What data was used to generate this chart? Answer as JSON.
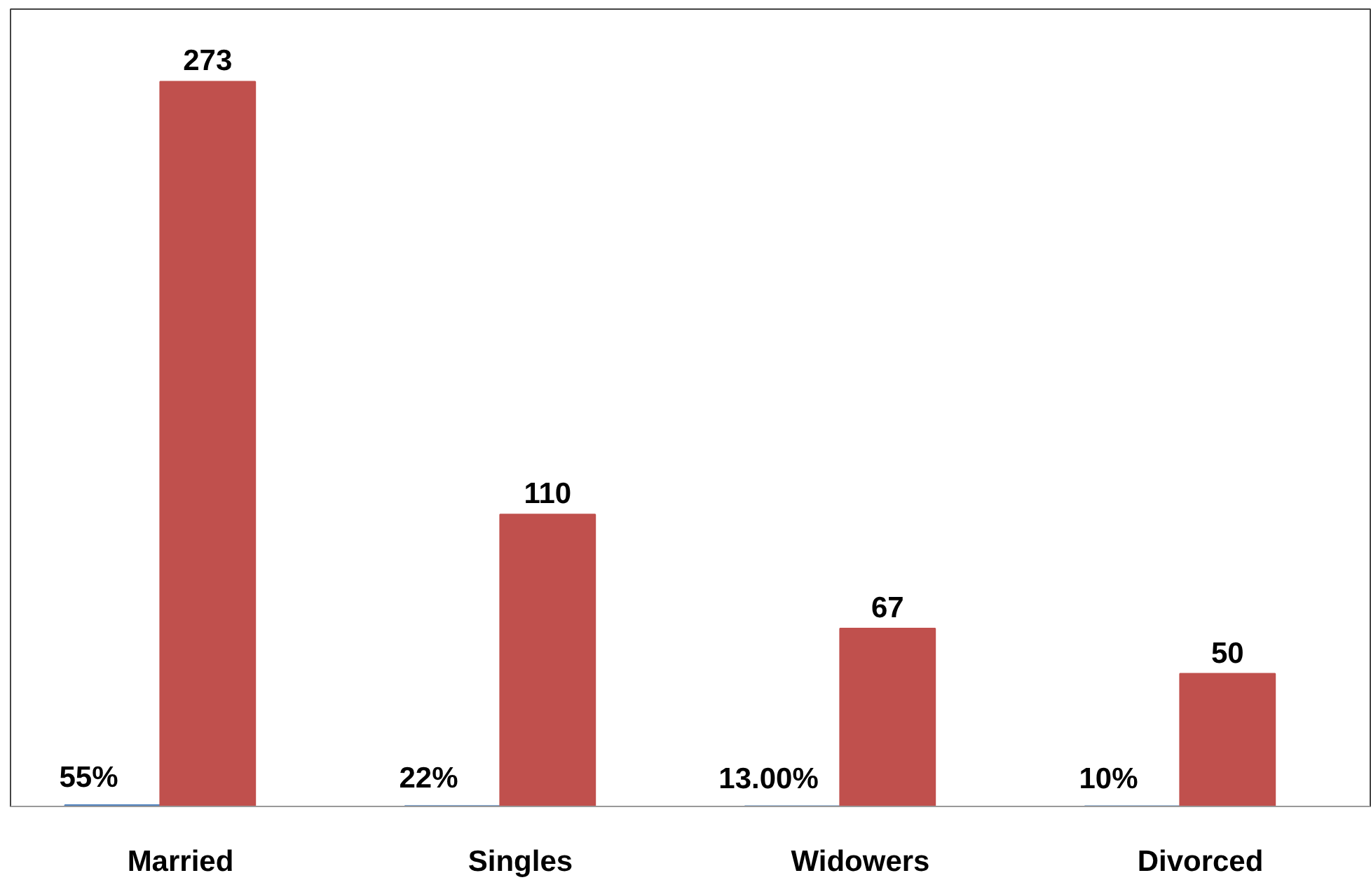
{
  "chart_data": {
    "type": "bar",
    "categories": [
      "Married",
      "Singles",
      "Widowers",
      "Divorced"
    ],
    "series": [
      {
        "color": "#4f81bd",
        "values": [
          0.55,
          0.22,
          0.13,
          0.1
        ],
        "value_labels": [
          "55%",
          "22%",
          "13.00%",
          "10%"
        ]
      },
      {
        "color": "#c0504d",
        "values": [
          273,
          110,
          67,
          50
        ],
        "value_labels": [
          "273",
          "110",
          "67",
          "50"
        ]
      }
    ],
    "grid": false
  }
}
